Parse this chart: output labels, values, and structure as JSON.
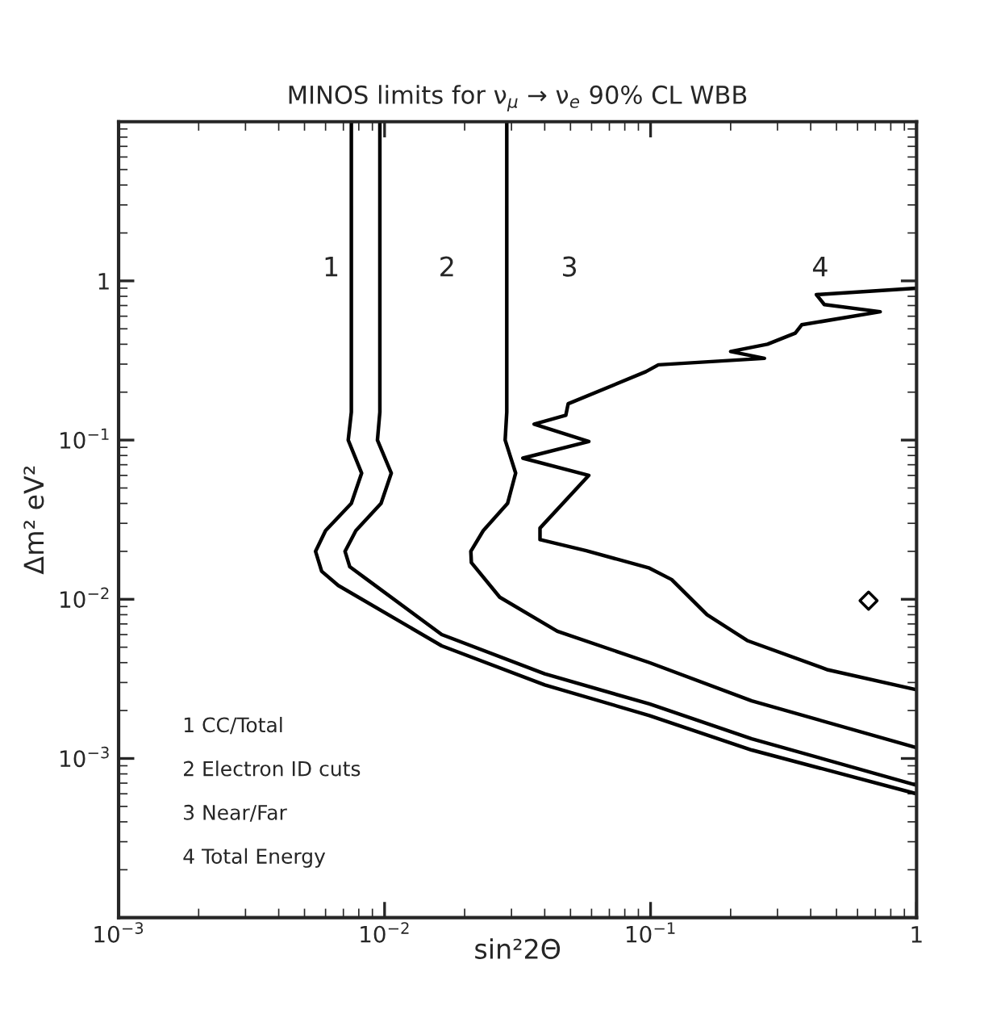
{
  "chart_data": {
    "type": "line",
    "title": "MINOS limits for ν$_{μ}$ → ν$_{e}$ 90% CL WBB",
    "xlabel": "sin²2Θ",
    "ylabel": "Δm² eV²",
    "log": "xy",
    "xlim": [
      0.001,
      1
    ],
    "ylim": [
      0.0001,
      10
    ],
    "xticks": [
      {
        "value": 0.001,
        "label": "10$^{−3}$"
      },
      {
        "value": 0.01,
        "label": "10$^{−2}$"
      },
      {
        "value": 0.1,
        "label": "10$^{−1}$"
      },
      1
    ],
    "yticks": [
      {
        "value": 0.001,
        "label": "10$^{−3}$"
      },
      {
        "value": 0.01,
        "label": "10$^{−2}$"
      },
      {
        "value": 0.1,
        "label": "10$^{−1}$"
      },
      1
    ],
    "grid": false,
    "legend": false,
    "line_style": "solid",
    "series": [
      {
        "name": "1",
        "color": "#000000",
        "x": [
          0.0075,
          0.0075,
          0.0073,
          0.0082,
          0.0075,
          0.006,
          0.0055,
          0.0058,
          0.0067,
          0.0164,
          0.04,
          0.099,
          0.24,
          1
        ],
        "values": [
          10,
          0.15,
          0.1,
          0.062,
          0.04,
          0.027,
          0.02,
          0.015,
          0.0122,
          0.0051,
          0.0029,
          0.00186,
          0.00113,
          0.0006
        ]
      },
      {
        "name": "2",
        "color": "#000000",
        "x": [
          0.0096,
          0.0096,
          0.0094,
          0.0106,
          0.0097,
          0.0078,
          0.0071,
          0.0074,
          0.0086,
          0.0164,
          0.04,
          0.099,
          0.24,
          1
        ],
        "values": [
          10,
          0.15,
          0.1,
          0.062,
          0.04,
          0.027,
          0.02,
          0.016,
          0.0133,
          0.006,
          0.0034,
          0.0022,
          0.00133,
          0.00068
        ]
      },
      {
        "name": "3",
        "color": "#000000",
        "x": [
          0.0288,
          0.0288,
          0.0284,
          0.0311,
          0.029,
          0.0235,
          0.0211,
          0.0212,
          0.0271,
          0.0446,
          0.099,
          0.24,
          1
        ],
        "values": [
          10,
          0.15,
          0.1,
          0.062,
          0.04,
          0.027,
          0.02,
          0.017,
          0.0103,
          0.0063,
          0.004,
          0.0023,
          0.00117
        ]
      },
      {
        "name": "4",
        "color": "#000000",
        "x": [
          1,
          0.42,
          0.45,
          0.73,
          0.37,
          0.35,
          0.275,
          0.2,
          0.268,
          0.107,
          0.096,
          0.049,
          0.048,
          0.0365,
          0.0586,
          0.0331,
          0.0586,
          0.0384,
          0.0384,
          0.0573,
          0.099,
          0.12,
          0.163,
          0.231,
          0.465,
          1
        ],
        "values": [
          0.9,
          0.82,
          0.71,
          0.64,
          0.53,
          0.47,
          0.4,
          0.36,
          0.326,
          0.297,
          0.269,
          0.169,
          0.143,
          0.126,
          0.098,
          0.077,
          0.06,
          0.028,
          0.0237,
          0.0202,
          0.0157,
          0.0133,
          0.008,
          0.0055,
          0.0036,
          0.0027
        ]
      },
      {
        "type": "scatter",
        "marker": "diamond",
        "color": "#000000",
        "x": [
          0.66
        ],
        "values": [
          0.0098
        ]
      }
    ],
    "annotations": [
      "1 CC/Total",
      "2 Electron ID cuts",
      "3 Near/Far",
      "4 Total Energy"
    ]
  }
}
